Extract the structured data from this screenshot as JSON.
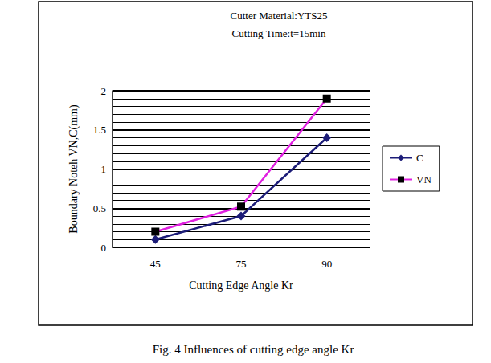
{
  "chart_data": {
    "type": "line",
    "title": "Cutter Material:YTS25",
    "subtitle": "Cutting Time:t=15min",
    "caption": "Fig. 4 Influences of cutting edge angle Kr",
    "x_label": "Cutting Edge Angle Kr",
    "y_label": "Boundary Noteh VN,C(mm)",
    "categories": [
      "45",
      "75",
      "90"
    ],
    "series": [
      {
        "name": "C",
        "color": "#1c1c78",
        "marker": "diamond",
        "values": [
          0.1,
          0.4,
          1.4
        ]
      },
      {
        "name": "VN",
        "color": "#e020e0",
        "marker": "square",
        "values": [
          0.2,
          0.52,
          1.9
        ]
      }
    ],
    "ylim": [
      0,
      2
    ],
    "yticks": [
      0,
      0.5,
      1,
      1.5,
      2
    ],
    "grid": true,
    "legend": "right"
  }
}
